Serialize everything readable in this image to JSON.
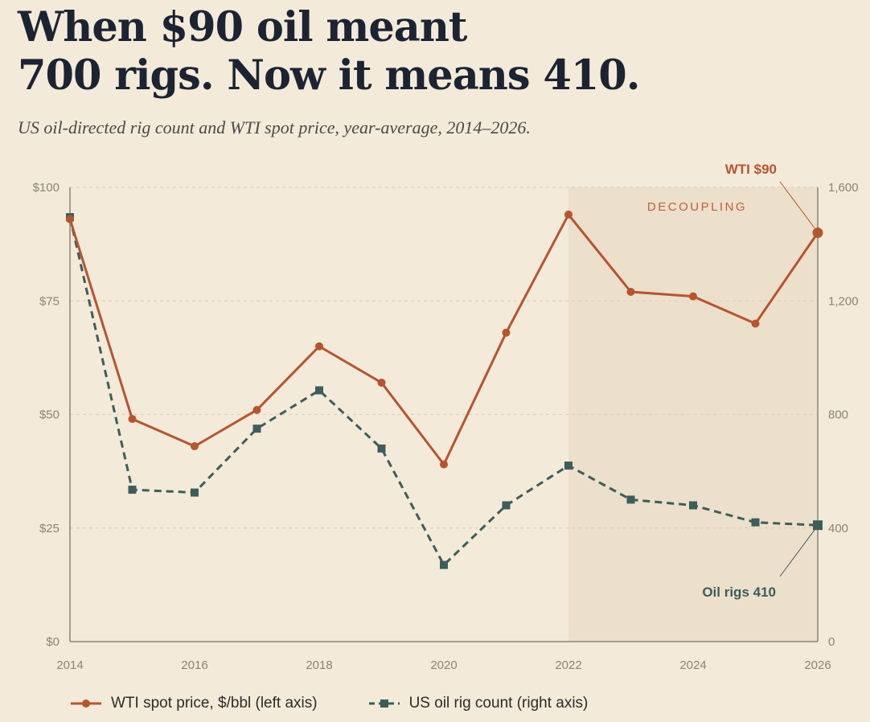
{
  "title_line1": "When $90 oil meant",
  "title_line2": "700 rigs. Now it means 410.",
  "subtitle": "US oil-directed rig count and WTI spot price, year-average, 2014–2026.",
  "colors": {
    "wti": "#b55530",
    "rigs": "#3d5d5b",
    "band": "#ecdfcb",
    "grid": "#ddd2bf",
    "axis": "#8b8478"
  },
  "chart_data": {
    "type": "line",
    "x": [
      2014,
      2015,
      2016,
      2017,
      2018,
      2019,
      2020,
      2021,
      2022,
      2023,
      2024,
      2025,
      2026
    ],
    "xticks": [
      "2014",
      "2016",
      "2018",
      "2020",
      "2022",
      "2024",
      "2026"
    ],
    "series": [
      {
        "name": "WTI spot price, $/bbl (left axis)",
        "axis": "left",
        "values": [
          93,
          49,
          43,
          51,
          65,
          57,
          39,
          68,
          94,
          77,
          76,
          70,
          90
        ]
      },
      {
        "name": "US oil rig count (right axis)",
        "axis": "right",
        "values": [
          1495,
          535,
          525,
          750,
          885,
          680,
          270,
          480,
          620,
          500,
          480,
          420,
          410
        ]
      }
    ],
    "left_axis": {
      "ylim": [
        0,
        100
      ],
      "ticks": [
        "$0",
        "$25",
        "$50",
        "$75",
        "$100"
      ]
    },
    "right_axis": {
      "ylim": [
        0,
        1600
      ],
      "ticks": [
        "0",
        "400",
        "800",
        "1,200",
        "1,600"
      ]
    },
    "shaded_region": {
      "from": 2022,
      "to": 2026,
      "label": "DECOUPLING"
    },
    "annotations": {
      "wti_end": "WTI $90",
      "rigs_end": "Oil rigs 410"
    },
    "grid": "horizontal dashed",
    "legend_position": "bottom-left"
  }
}
